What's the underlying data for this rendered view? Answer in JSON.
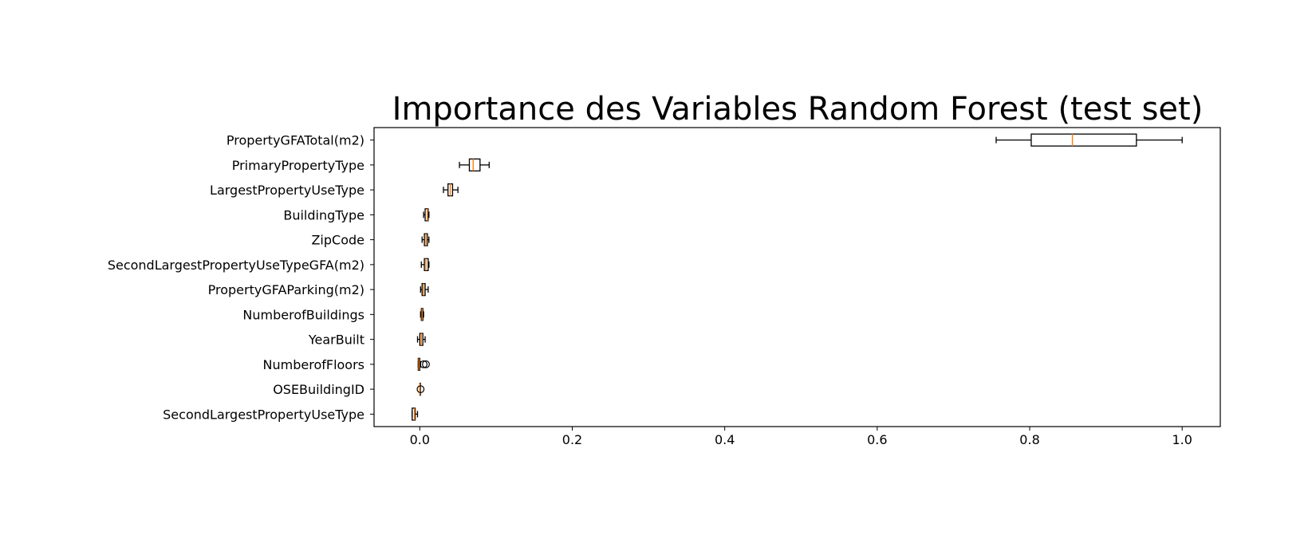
{
  "chart_data": {
    "type": "boxplot",
    "orientation": "horizontal",
    "title": "Importance des Variables Random Forest (test set)",
    "xlabel": "",
    "ylabel": "",
    "xlim": [
      -0.06,
      1.05
    ],
    "xticks": [
      0.0,
      0.2,
      0.4,
      0.6,
      0.8,
      1.0
    ],
    "xtick_labels": [
      "0.0",
      "0.2",
      "0.4",
      "0.6",
      "0.8",
      "1.0"
    ],
    "grid": false,
    "colors": {
      "box_edge": "#000000",
      "median": "#ff7f0e",
      "flier": "#000000"
    },
    "categories": [
      "PropertyGFATotal(m2)",
      "PrimaryPropertyType",
      "LargestPropertyUseType",
      "BuildingType",
      "ZipCode",
      "SecondLargestPropertyUseTypeGFA(m2)",
      "PropertyGFAParking(m2)",
      "NumberofBuildings",
      "YearBuilt",
      "NumberofFloors",
      "OSEBuildingID",
      "SecondLargestPropertyUseType"
    ],
    "boxes": [
      {
        "whislo": 0.756,
        "q1": 0.802,
        "med": 0.856,
        "q3": 0.94,
        "whishi": 1.0,
        "fliers": []
      },
      {
        "whislo": 0.052,
        "q1": 0.065,
        "med": 0.07,
        "q3": 0.079,
        "whishi": 0.091,
        "fliers": []
      },
      {
        "whislo": 0.031,
        "q1": 0.037,
        "med": 0.04,
        "q3": 0.043,
        "whishi": 0.05,
        "fliers": []
      },
      {
        "whislo": 0.005,
        "q1": 0.007,
        "med": 0.01,
        "q3": 0.011,
        "whishi": 0.012,
        "fliers": []
      },
      {
        "whislo": 0.003,
        "q1": 0.006,
        "med": 0.008,
        "q3": 0.01,
        "whishi": 0.012,
        "fliers": []
      },
      {
        "whislo": 0.002,
        "q1": 0.006,
        "med": 0.008,
        "q3": 0.011,
        "whishi": 0.012,
        "fliers": []
      },
      {
        "whislo": 0.001,
        "q1": 0.003,
        "med": 0.005,
        "q3": 0.007,
        "whishi": 0.011,
        "fliers": []
      },
      {
        "whislo": 0.001,
        "q1": 0.002,
        "med": 0.003,
        "q3": 0.004,
        "whishi": 0.005,
        "fliers": []
      },
      {
        "whislo": -0.003,
        "q1": 0.0,
        "med": 0.002,
        "q3": 0.004,
        "whishi": 0.007,
        "fliers": []
      },
      {
        "whislo": -0.002,
        "q1": -0.002,
        "med": -0.001,
        "q3": 0.0,
        "whishi": 0.001,
        "fliers": [
          0.005,
          0.008
        ]
      },
      {
        "whislo": 0.0,
        "q1": 0.0,
        "med": 0.0,
        "q3": 0.0,
        "whishi": 0.0,
        "fliers": [
          0.001
        ]
      },
      {
        "whislo": -0.01,
        "q1": -0.01,
        "med": -0.007,
        "q3": -0.006,
        "whishi": -0.003,
        "fliers": []
      }
    ]
  }
}
